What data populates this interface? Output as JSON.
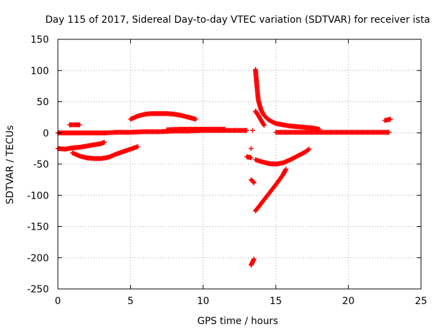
{
  "chart_data": {
    "type": "scatter",
    "title": "Day 115 of 2017, Sidereal Day-to-day VTEC variation (SDTVAR) for receiver ista",
    "xlabel": "GPS time / hours",
    "ylabel": "SDTVAR / TECUs",
    "xlim": [
      0,
      25
    ],
    "ylim": [
      -250,
      150
    ],
    "x_ticks": [
      0,
      5,
      10,
      15,
      20,
      25
    ],
    "y_ticks": [
      -250,
      -200,
      -150,
      -100,
      -50,
      0,
      50,
      100,
      150
    ],
    "grid": true,
    "marker": "+",
    "color": "#ff0000",
    "series": [
      {
        "type": "line",
        "x": [
          0.0,
          0.5,
          1.0,
          1.5,
          2.0,
          2.5,
          3.0,
          3.3
        ],
        "values": [
          0,
          0,
          0,
          0,
          0,
          0,
          0,
          0
        ]
      },
      {
        "type": "line",
        "x": [
          0.0,
          0.5,
          1.0,
          1.5,
          2.0,
          2.5,
          3.0,
          3.2
        ],
        "values": [
          -25,
          -26,
          -24,
          -23,
          -21,
          -19,
          -17,
          -15
        ]
      },
      {
        "type": "line",
        "x": [
          0.8,
          1.0,
          1.2,
          1.5
        ],
        "values": [
          13,
          13,
          13,
          13
        ]
      },
      {
        "type": "line",
        "x": [
          1.0,
          1.5,
          2.0,
          2.5,
          3.0,
          3.5,
          4.0,
          4.5,
          5.0,
          5.5
        ],
        "values": [
          -32,
          -37,
          -40,
          -41,
          -41,
          -39,
          -34,
          -30,
          -26,
          -22
        ]
      },
      {
        "type": "line",
        "x": [
          3.3,
          4,
          5,
          6,
          7,
          8,
          9,
          10,
          11,
          12,
          13.0
        ],
        "values": [
          0,
          1,
          1,
          2,
          2,
          3,
          3,
          4,
          4,
          4,
          4
        ]
      },
      {
        "type": "line",
        "x": [
          5.0,
          5.5,
          6.0,
          6.5,
          7.0,
          7.5,
          8.0,
          8.5,
          9.0,
          9.5
        ],
        "values": [
          22,
          27,
          30,
          31,
          31,
          31,
          30,
          28,
          25,
          22
        ]
      },
      {
        "type": "line",
        "x": [
          7.5,
          8.5,
          9.5,
          10.5,
          11.5
        ],
        "values": [
          5,
          6,
          6,
          6,
          6
        ]
      },
      {
        "type": "line",
        "x": [
          13.0,
          13.1,
          13.2,
          13.3
        ],
        "values": [
          -38,
          -39,
          -39,
          -40
        ]
      },
      {
        "type": "point",
        "x": [
          13.3
        ],
        "values": [
          -25
        ]
      },
      {
        "type": "point",
        "x": [
          13.4
        ],
        "values": [
          4
        ]
      },
      {
        "type": "line",
        "x": [
          13.3,
          13.4,
          13.5
        ],
        "values": [
          -75,
          -77,
          -80
        ]
      },
      {
        "type": "line",
        "x": [
          13.3,
          13.4,
          13.5
        ],
        "values": [
          -212,
          -207,
          -202
        ]
      },
      {
        "type": "line",
        "x": [
          13.6,
          13.7,
          13.8,
          14.0,
          14.2,
          14.5,
          15.0,
          15.5,
          16.0,
          16.5,
          17.0,
          17.5,
          18.0
        ],
        "values": [
          102,
          75,
          52,
          36,
          28,
          21,
          15,
          13,
          11,
          10,
          9,
          8,
          6
        ]
      },
      {
        "type": "line",
        "x": [
          13.6,
          13.8,
          14.0,
          14.2
        ],
        "values": [
          35,
          28,
          20,
          12
        ]
      },
      {
        "type": "line",
        "x": [
          13.6,
          14.0,
          14.5,
          15.0,
          15.5,
          16.0,
          16.5,
          17.0,
          17.3
        ],
        "values": [
          -43,
          -46,
          -49,
          -50,
          -48,
          -43,
          -37,
          -31,
          -26
        ]
      },
      {
        "type": "line",
        "x": [
          13.6,
          14.0,
          14.5,
          15.0,
          15.5,
          15.7
        ],
        "values": [
          -125,
          -113,
          -98,
          -83,
          -67,
          -58
        ]
      },
      {
        "type": "line",
        "x": [
          15.0,
          16,
          17,
          18,
          19,
          20,
          21,
          22,
          22.8
        ],
        "values": [
          1,
          1,
          1,
          1,
          1,
          1,
          1,
          1,
          1
        ]
      },
      {
        "type": "line",
        "x": [
          22.5,
          22.7,
          22.9
        ],
        "values": [
          20,
          21,
          22
        ]
      }
    ]
  }
}
